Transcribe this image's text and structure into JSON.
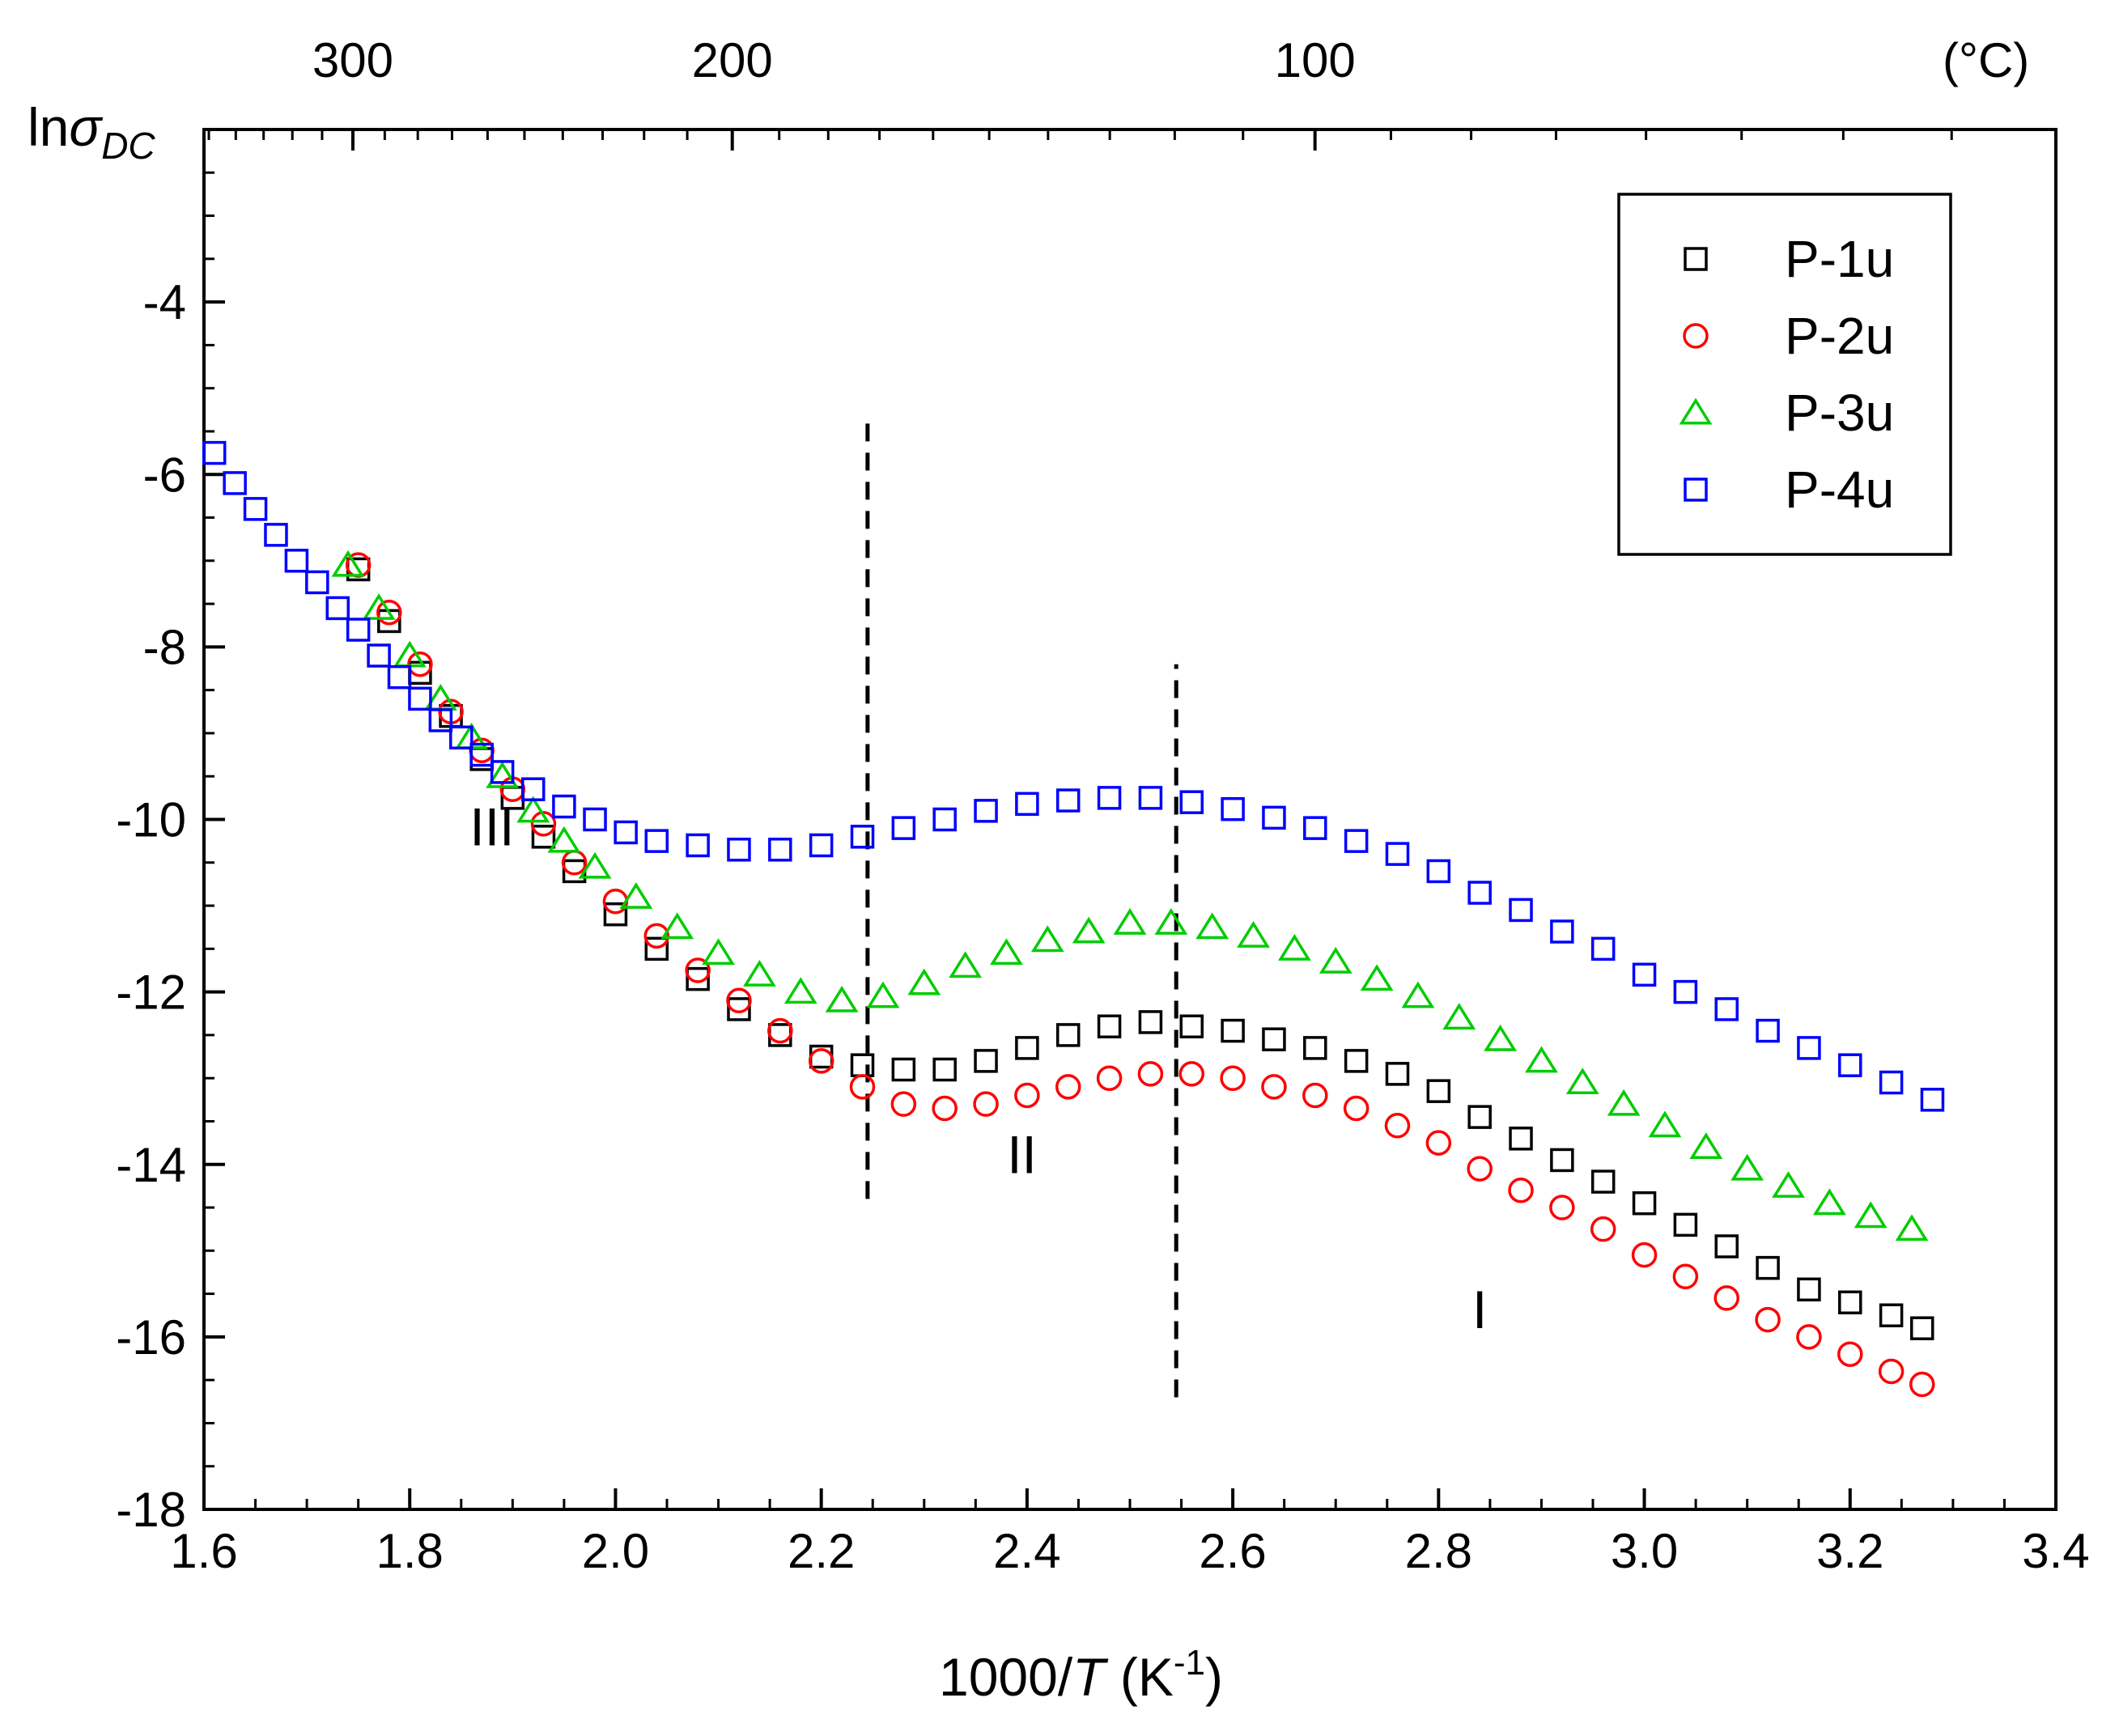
{
  "chart_data": {
    "type": "scatter",
    "xlabel": "1000/T (K⁻¹)",
    "xlabel_parts": {
      "prefix": "1000/",
      "italic": "T",
      "mid": " (K",
      "sup": "-1",
      "suffix": ")"
    },
    "ylabel_parts": {
      "prefix": "ln",
      "italic": "σ",
      "sub": "DC"
    },
    "top_axis_unit": "(°C)",
    "xlim": [
      1.6,
      3.4
    ],
    "ylim": [
      -18,
      -2.0
    ],
    "x_ticks": [
      1.6,
      1.8,
      2.0,
      2.2,
      2.4,
      2.6,
      2.8,
      3.0,
      3.2,
      3.4
    ],
    "x_tick_labels": [
      "1.6",
      "1.8",
      "2.0",
      "2.2",
      "2.4",
      "2.6",
      "2.8",
      "3.0",
      "3.2",
      "3.4"
    ],
    "y_ticks": [
      -18,
      -16,
      -14,
      -12,
      -10,
      -8,
      -6,
      -4
    ],
    "y_tick_labels": [
      "-18",
      "-16",
      "-14",
      "-12",
      "-10",
      "-8",
      "-6",
      "-4"
    ],
    "top_ticks_celsius": [
      300,
      200,
      100
    ],
    "top_tick_labels": [
      "300",
      "200",
      "100"
    ],
    "vertical_lines": [
      {
        "x": 2.245,
        "y_from": -14.4,
        "y_to": -5.4
      },
      {
        "x": 2.545,
        "y_from": -16.7,
        "y_to": -8.2
      }
    ],
    "regions": [
      {
        "label": "III",
        "x": 1.88,
        "y": -10.3
      },
      {
        "label": "II",
        "x": 2.395,
        "y": -14.1
      },
      {
        "label": "I",
        "x": 2.84,
        "y": -15.9
      }
    ],
    "legend": {
      "position": "top-right",
      "entries": [
        "P-1u",
        "P-2u",
        "P-3u",
        "P-4u"
      ]
    },
    "series": [
      {
        "name": "P-1u",
        "marker": "square",
        "color": "#000000",
        "points": [
          [
            1.75,
            -7.1
          ],
          [
            1.78,
            -7.7
          ],
          [
            1.81,
            -8.3
          ],
          [
            1.84,
            -8.8
          ],
          [
            1.87,
            -9.3
          ],
          [
            1.9,
            -9.75
          ],
          [
            1.93,
            -10.2
          ],
          [
            1.96,
            -10.6
          ],
          [
            2.0,
            -11.1
          ],
          [
            2.04,
            -11.5
          ],
          [
            2.08,
            -11.85
          ],
          [
            2.12,
            -12.2
          ],
          [
            2.16,
            -12.5
          ],
          [
            2.2,
            -12.75
          ],
          [
            2.24,
            -12.85
          ],
          [
            2.28,
            -12.9
          ],
          [
            2.32,
            -12.9
          ],
          [
            2.36,
            -12.8
          ],
          [
            2.4,
            -12.65
          ],
          [
            2.44,
            -12.5
          ],
          [
            2.48,
            -12.4
          ],
          [
            2.52,
            -12.35
          ],
          [
            2.56,
            -12.4
          ],
          [
            2.6,
            -12.45
          ],
          [
            2.64,
            -12.55
          ],
          [
            2.68,
            -12.65
          ],
          [
            2.72,
            -12.8
          ],
          [
            2.76,
            -12.95
          ],
          [
            2.8,
            -13.15
          ],
          [
            2.84,
            -13.45
          ],
          [
            2.88,
            -13.7
          ],
          [
            2.92,
            -13.95
          ],
          [
            2.96,
            -14.2
          ],
          [
            3.0,
            -14.45
          ],
          [
            3.04,
            -14.7
          ],
          [
            3.08,
            -14.95
          ],
          [
            3.12,
            -15.2
          ],
          [
            3.16,
            -15.45
          ],
          [
            3.2,
            -15.6
          ],
          [
            3.24,
            -15.75
          ],
          [
            3.27,
            -15.9
          ]
        ]
      },
      {
        "name": "P-2u",
        "marker": "circle",
        "color": "#ff0000",
        "points": [
          [
            1.75,
            -7.05
          ],
          [
            1.78,
            -7.6
          ],
          [
            1.81,
            -8.2
          ],
          [
            1.84,
            -8.75
          ],
          [
            1.87,
            -9.2
          ],
          [
            1.9,
            -9.65
          ],
          [
            1.93,
            -10.05
          ],
          [
            1.96,
            -10.5
          ],
          [
            2.0,
            -10.95
          ],
          [
            2.04,
            -11.35
          ],
          [
            2.08,
            -11.75
          ],
          [
            2.12,
            -12.1
          ],
          [
            2.16,
            -12.45
          ],
          [
            2.2,
            -12.8
          ],
          [
            2.24,
            -13.1
          ],
          [
            2.28,
            -13.3
          ],
          [
            2.32,
            -13.35
          ],
          [
            2.36,
            -13.3
          ],
          [
            2.4,
            -13.2
          ],
          [
            2.44,
            -13.1
          ],
          [
            2.48,
            -13.0
          ],
          [
            2.52,
            -12.95
          ],
          [
            2.56,
            -12.95
          ],
          [
            2.6,
            -13.0
          ],
          [
            2.64,
            -13.1
          ],
          [
            2.68,
            -13.2
          ],
          [
            2.72,
            -13.35
          ],
          [
            2.76,
            -13.55
          ],
          [
            2.8,
            -13.75
          ],
          [
            2.84,
            -14.05
          ],
          [
            2.88,
            -14.3
          ],
          [
            2.92,
            -14.5
          ],
          [
            2.96,
            -14.75
          ],
          [
            3.0,
            -15.05
          ],
          [
            3.04,
            -15.3
          ],
          [
            3.08,
            -15.55
          ],
          [
            3.12,
            -15.8
          ],
          [
            3.16,
            -16.0
          ],
          [
            3.2,
            -16.2
          ],
          [
            3.24,
            -16.4
          ],
          [
            3.27,
            -16.55
          ]
        ]
      },
      {
        "name": "P-3u",
        "marker": "triangle",
        "color": "#00cc00",
        "points": [
          [
            1.74,
            -7.05
          ],
          [
            1.77,
            -7.55
          ],
          [
            1.8,
            -8.1
          ],
          [
            1.83,
            -8.6
          ],
          [
            1.86,
            -9.05
          ],
          [
            1.89,
            -9.5
          ],
          [
            1.92,
            -9.9
          ],
          [
            1.95,
            -10.25
          ],
          [
            1.98,
            -10.55
          ],
          [
            2.02,
            -10.9
          ],
          [
            2.06,
            -11.25
          ],
          [
            2.1,
            -11.55
          ],
          [
            2.14,
            -11.8
          ],
          [
            2.18,
            -12.0
          ],
          [
            2.22,
            -12.1
          ],
          [
            2.26,
            -12.05
          ],
          [
            2.3,
            -11.9
          ],
          [
            2.34,
            -11.7
          ],
          [
            2.38,
            -11.55
          ],
          [
            2.42,
            -11.4
          ],
          [
            2.46,
            -11.3
          ],
          [
            2.5,
            -11.2
          ],
          [
            2.54,
            -11.2
          ],
          [
            2.58,
            -11.25
          ],
          [
            2.62,
            -11.35
          ],
          [
            2.66,
            -11.5
          ],
          [
            2.7,
            -11.65
          ],
          [
            2.74,
            -11.85
          ],
          [
            2.78,
            -12.05
          ],
          [
            2.82,
            -12.3
          ],
          [
            2.86,
            -12.55
          ],
          [
            2.9,
            -12.8
          ],
          [
            2.94,
            -13.05
          ],
          [
            2.98,
            -13.3
          ],
          [
            3.02,
            -13.55
          ],
          [
            3.06,
            -13.8
          ],
          [
            3.1,
            -14.05
          ],
          [
            3.14,
            -14.25
          ],
          [
            3.18,
            -14.45
          ],
          [
            3.22,
            -14.6
          ],
          [
            3.26,
            -14.75
          ]
        ]
      },
      {
        "name": "P-4u",
        "marker": "square",
        "color": "#0000ff",
        "points": [
          [
            1.61,
            -5.75
          ],
          [
            1.63,
            -6.1
          ],
          [
            1.65,
            -6.4
          ],
          [
            1.67,
            -6.7
          ],
          [
            1.69,
            -7.0
          ],
          [
            1.71,
            -7.25
          ],
          [
            1.73,
            -7.55
          ],
          [
            1.75,
            -7.8
          ],
          [
            1.77,
            -8.1
          ],
          [
            1.79,
            -8.35
          ],
          [
            1.81,
            -8.6
          ],
          [
            1.83,
            -8.85
          ],
          [
            1.85,
            -9.05
          ],
          [
            1.87,
            -9.25
          ],
          [
            1.89,
            -9.45
          ],
          [
            1.92,
            -9.65
          ],
          [
            1.95,
            -9.85
          ],
          [
            1.98,
            -10.0
          ],
          [
            2.01,
            -10.15
          ],
          [
            2.04,
            -10.25
          ],
          [
            2.08,
            -10.3
          ],
          [
            2.12,
            -10.35
          ],
          [
            2.16,
            -10.35
          ],
          [
            2.2,
            -10.3
          ],
          [
            2.24,
            -10.2
          ],
          [
            2.28,
            -10.1
          ],
          [
            2.32,
            -10.0
          ],
          [
            2.36,
            -9.9
          ],
          [
            2.4,
            -9.82
          ],
          [
            2.44,
            -9.78
          ],
          [
            2.48,
            -9.75
          ],
          [
            2.52,
            -9.75
          ],
          [
            2.56,
            -9.8
          ],
          [
            2.6,
            -9.88
          ],
          [
            2.64,
            -9.98
          ],
          [
            2.68,
            -10.1
          ],
          [
            2.72,
            -10.25
          ],
          [
            2.76,
            -10.4
          ],
          [
            2.8,
            -10.6
          ],
          [
            2.84,
            -10.85
          ],
          [
            2.88,
            -11.05
          ],
          [
            2.92,
            -11.3
          ],
          [
            2.96,
            -11.5
          ],
          [
            3.0,
            -11.8
          ],
          [
            3.04,
            -12.0
          ],
          [
            3.08,
            -12.2
          ],
          [
            3.12,
            -12.45
          ],
          [
            3.16,
            -12.65
          ],
          [
            3.2,
            -12.85
          ],
          [
            3.24,
            -13.05
          ],
          [
            3.28,
            -13.25
          ]
        ]
      }
    ]
  }
}
